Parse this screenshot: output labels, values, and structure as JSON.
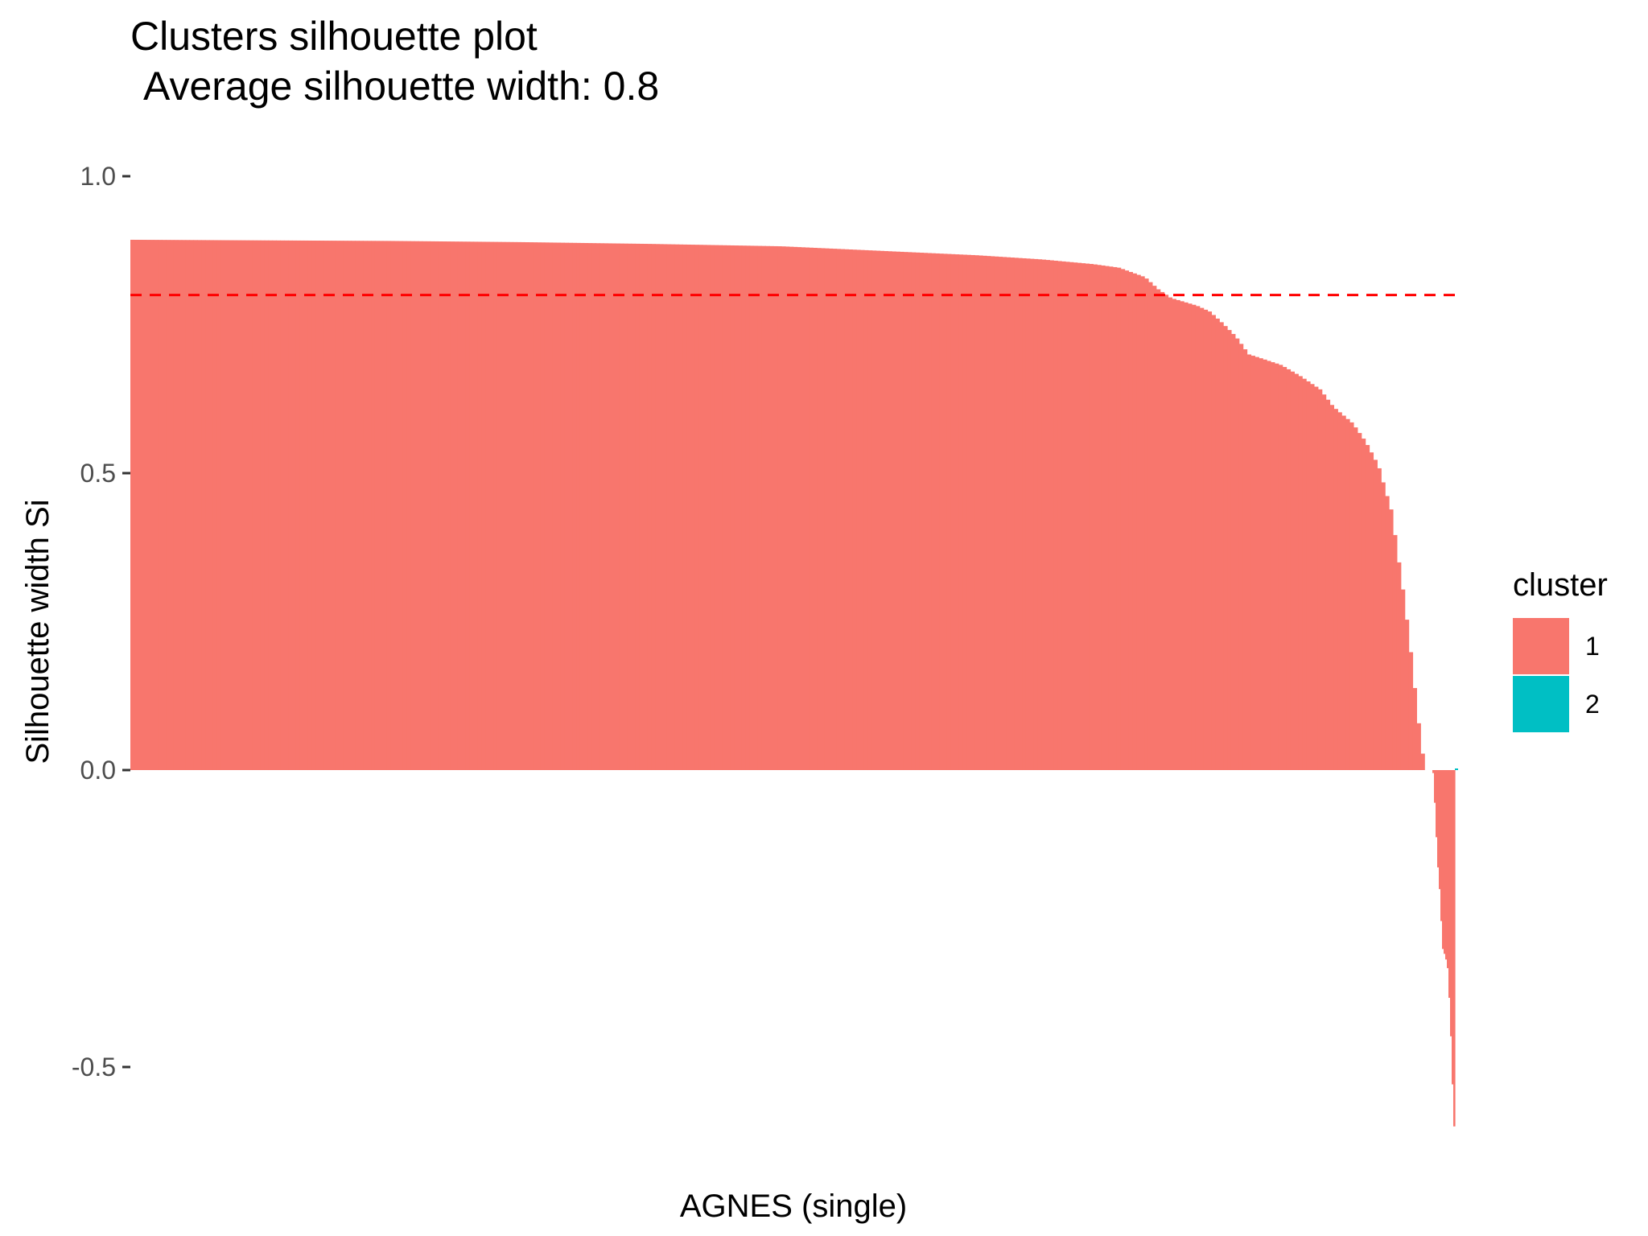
{
  "chart_data": {
    "type": "bar",
    "title": "Clusters silhouette plot",
    "subtitle": "Average silhouette width: 0.8",
    "xlabel": "AGNES (single)",
    "ylabel": "Silhouette width Si",
    "ylim": [
      -0.6,
      1.05
    ],
    "y_ticks": [
      {
        "value": 1.0,
        "label": "1.0"
      },
      {
        "value": 0.5,
        "label": "0.5"
      },
      {
        "value": 0.0,
        "label": "0.0"
      },
      {
        "value": -0.5,
        "label": "-0.5"
      }
    ],
    "average_line": {
      "value": 0.8,
      "color": "#FF0000",
      "style": "dashed"
    },
    "grid": false,
    "legend": {
      "title": "cluster",
      "position": "right",
      "entries": [
        {
          "label": "1",
          "color": "#F8766D"
        },
        {
          "label": "2",
          "color": "#00BFC4"
        }
      ]
    },
    "series": [
      {
        "name": "1",
        "color": "#F8766D",
        "profile": [
          [
            0.0,
            0.893
          ],
          [
            0.1,
            0.892
          ],
          [
            0.2,
            0.891
          ],
          [
            0.3,
            0.889
          ],
          [
            0.4,
            0.886
          ],
          [
            0.5,
            0.882
          ],
          [
            0.55,
            0.877
          ],
          [
            0.6,
            0.872
          ],
          [
            0.65,
            0.867
          ],
          [
            0.7,
            0.86
          ],
          [
            0.74,
            0.852
          ],
          [
            0.76,
            0.846
          ],
          [
            0.78,
            0.83
          ],
          [
            0.79,
            0.81
          ],
          [
            0.8,
            0.795
          ],
          [
            0.82,
            0.782
          ],
          [
            0.83,
            0.772
          ],
          [
            0.84,
            0.752
          ],
          [
            0.85,
            0.73
          ],
          [
            0.86,
            0.7
          ],
          [
            0.87,
            0.693
          ],
          [
            0.885,
            0.682
          ],
          [
            0.9,
            0.663
          ],
          [
            0.915,
            0.641
          ],
          [
            0.925,
            0.612
          ],
          [
            0.94,
            0.584
          ],
          [
            0.95,
            0.553
          ],
          [
            0.96,
            0.512
          ],
          [
            0.965,
            0.473
          ],
          [
            0.97,
            0.436
          ],
          [
            0.975,
            0.36
          ],
          [
            0.98,
            0.285
          ],
          [
            0.985,
            0.195
          ],
          [
            0.99,
            0.095
          ],
          [
            0.993,
            0.04
          ],
          [
            0.996,
            0.0
          ]
        ]
      },
      {
        "name": "2",
        "color": "#00BFC4",
        "profile": [
          [
            0.0,
            0.001
          ]
        ]
      }
    ],
    "negative_tail": {
      "cluster": "1",
      "profile": [
        [
          0.0,
          -0.005
        ],
        [
          0.1,
          -0.07
        ],
        [
          0.2,
          -0.15
        ],
        [
          0.3,
          -0.195
        ],
        [
          0.45,
          -0.3
        ],
        [
          0.6,
          -0.316
        ],
        [
          0.7,
          -0.335
        ],
        [
          0.8,
          -0.405
        ],
        [
          0.88,
          -0.48
        ],
        [
          0.95,
          -0.56
        ],
        [
          1.0,
          -0.6
        ]
      ]
    }
  }
}
